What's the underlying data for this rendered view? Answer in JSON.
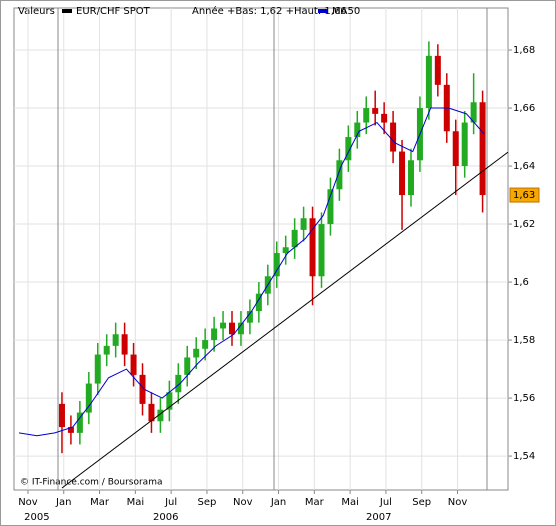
{
  "chart_data": {
    "type": "candlestick",
    "legend_title": "Valeurs",
    "subtitle": "Année +Bas: 1,62 +Haut: 1,66",
    "credit": "© IT-Finance.com / Boursorama",
    "xlim": [
      -0.78,
      26.82
    ],
    "ylim": [
      1.5283,
      1.6945
    ],
    "grid": true,
    "xticks": [
      {
        "value": 0,
        "label": "Nov"
      },
      {
        "value": 2,
        "label": "Jan"
      },
      {
        "value": 4,
        "label": "Mar"
      },
      {
        "value": 6,
        "label": "Mai"
      },
      {
        "value": 8,
        "label": "Jul"
      },
      {
        "value": 10,
        "label": "Sep"
      },
      {
        "value": 12,
        "label": "Nov"
      },
      {
        "value": 14,
        "label": "Jan"
      },
      {
        "value": 16,
        "label": "Mar"
      },
      {
        "value": 18,
        "label": "Mai"
      },
      {
        "value": 20,
        "label": "Jul"
      },
      {
        "value": 22,
        "label": "Sep"
      },
      {
        "value": 24,
        "label": "Nov"
      }
    ],
    "year_labels": [
      {
        "value": 0.5,
        "label": "2005"
      },
      {
        "value": 7.7,
        "label": "2006"
      },
      {
        "value": 19.6,
        "label": "2007"
      }
    ],
    "yticks": [
      {
        "value": 1.54,
        "label": "1,54"
      },
      {
        "value": 1.56,
        "label": "1,56"
      },
      {
        "value": 1.58,
        "label": "1,58"
      },
      {
        "value": 1.6,
        "label": "1,6"
      },
      {
        "value": 1.62,
        "label": "1,62"
      },
      {
        "value": 1.64,
        "label": "1,64"
      },
      {
        "value": 1.66,
        "label": "1,66"
      },
      {
        "value": 1.68,
        "label": "1,68"
      }
    ],
    "last_price": {
      "value": 1.63,
      "label": "1,63"
    },
    "x": [
      1.9,
      2.4,
      2.9,
      3.4,
      3.9,
      4.4,
      4.9,
      5.4,
      5.9,
      6.4,
      6.9,
      7.4,
      7.9,
      8.4,
      8.9,
      9.4,
      9.9,
      10.4,
      10.9,
      11.4,
      11.9,
      12.4,
      12.9,
      13.4,
      13.9,
      14.4,
      14.9,
      15.4,
      15.9,
      16.4,
      16.9,
      17.4,
      17.9,
      18.4,
      18.9,
      19.4,
      19.9,
      20.4,
      20.9,
      21.4,
      21.9,
      22.4,
      22.9,
      23.4,
      23.9,
      24.4,
      24.9,
      25.4
    ],
    "series": [
      {
        "name": "EUR/CHF SPOT",
        "color": "#000000",
        "up_color": "#22aa22",
        "down_color": "#cc0000",
        "open": [
          1.558,
          1.55,
          1.548,
          1.555,
          1.565,
          1.575,
          1.578,
          1.582,
          1.575,
          1.568,
          1.558,
          1.552,
          1.556,
          1.562,
          1.568,
          1.574,
          1.577,
          1.58,
          1.584,
          1.586,
          1.582,
          1.586,
          1.59,
          1.596,
          1.602,
          1.61,
          1.612,
          1.618,
          1.622,
          1.602,
          1.62,
          1.632,
          1.642,
          1.65,
          1.655,
          1.66,
          1.658,
          1.655,
          1.645,
          1.63,
          1.642,
          1.66,
          1.678,
          1.668,
          1.652,
          1.64,
          1.655,
          1.662
        ],
        "high": [
          1.562,
          1.554,
          1.559,
          1.569,
          1.579,
          1.582,
          1.586,
          1.586,
          1.579,
          1.572,
          1.562,
          1.56,
          1.566,
          1.572,
          1.578,
          1.581,
          1.584,
          1.588,
          1.59,
          1.59,
          1.59,
          1.594,
          1.6,
          1.606,
          1.614,
          1.616,
          1.622,
          1.626,
          1.626,
          1.624,
          1.636,
          1.646,
          1.654,
          1.659,
          1.664,
          1.666,
          1.662,
          1.659,
          1.649,
          1.646,
          1.664,
          1.683,
          1.682,
          1.672,
          1.656,
          1.659,
          1.672,
          1.666
        ],
        "low": [
          1.541,
          1.544,
          1.544,
          1.551,
          1.561,
          1.571,
          1.574,
          1.571,
          1.564,
          1.554,
          1.548,
          1.548,
          1.552,
          1.558,
          1.564,
          1.57,
          1.573,
          1.576,
          1.58,
          1.578,
          1.578,
          1.582,
          1.586,
          1.592,
          1.598,
          1.606,
          1.608,
          1.614,
          1.592,
          1.598,
          1.616,
          1.628,
          1.638,
          1.646,
          1.651,
          1.654,
          1.651,
          1.641,
          1.618,
          1.626,
          1.638,
          1.656,
          1.664,
          1.648,
          1.63,
          1.636,
          1.651,
          1.624
        ],
        "close": [
          1.55,
          1.548,
          1.555,
          1.565,
          1.575,
          1.578,
          1.582,
          1.575,
          1.568,
          1.558,
          1.552,
          1.556,
          1.562,
          1.568,
          1.574,
          1.577,
          1.58,
          1.584,
          1.586,
          1.582,
          1.586,
          1.59,
          1.596,
          1.602,
          1.61,
          1.612,
          1.618,
          1.622,
          1.602,
          1.62,
          1.632,
          1.642,
          1.65,
          1.655,
          1.66,
          1.658,
          1.655,
          1.645,
          1.63,
          1.642,
          1.66,
          1.678,
          1.668,
          1.652,
          1.64,
          1.655,
          1.662,
          1.63
        ]
      },
      {
        "name": "MA50",
        "type": "line",
        "color": "#0000cc",
        "x": [
          -0.5,
          0.5,
          1.5,
          2.5,
          3.5,
          4.5,
          5.5,
          6.5,
          7.5,
          8.5,
          9.5,
          10.5,
          11.5,
          12.5,
          13.5,
          14.5,
          15.5,
          16.5,
          17.5,
          18.5,
          19.5,
          20.5,
          21.5,
          22.5,
          23.5,
          24.5,
          25.5
        ],
        "values": [
          1.548,
          1.547,
          1.548,
          1.55,
          1.558,
          1.567,
          1.57,
          1.563,
          1.56,
          1.565,
          1.572,
          1.578,
          1.582,
          1.59,
          1.6,
          1.61,
          1.615,
          1.623,
          1.64,
          1.652,
          1.655,
          1.648,
          1.645,
          1.66,
          1.66,
          1.658,
          1.651
        ]
      }
    ],
    "trendline": {
      "color": "#000000",
      "x": [
        1.9,
        26.82
      ],
      "values": [
        1.529,
        1.6448
      ]
    }
  }
}
